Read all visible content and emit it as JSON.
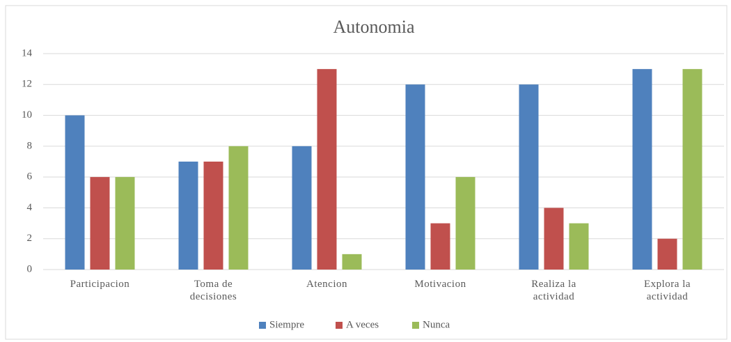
{
  "chart_data": {
    "type": "bar",
    "title": "Autonomia",
    "categories": [
      "Participacion",
      "Toma de decisiones",
      "Atencion",
      "Motivacion",
      "Realiza la actividad",
      "Explora la actividad"
    ],
    "series": [
      {
        "name": "Siempre",
        "color": "#4f81bd",
        "values": [
          10,
          7,
          8,
          12,
          12,
          13
        ]
      },
      {
        "name": "A veces",
        "color": "#c0504d",
        "values": [
          6,
          7,
          13,
          3,
          4,
          2
        ]
      },
      {
        "name": "Nunca",
        "color": "#9bbb59",
        "values": [
          6,
          8,
          1,
          6,
          3,
          13
        ]
      }
    ],
    "ylim": [
      0,
      14
    ],
    "yticks": [
      0,
      2,
      4,
      6,
      8,
      10,
      12,
      14
    ],
    "grid": true,
    "legend": "bottom"
  }
}
